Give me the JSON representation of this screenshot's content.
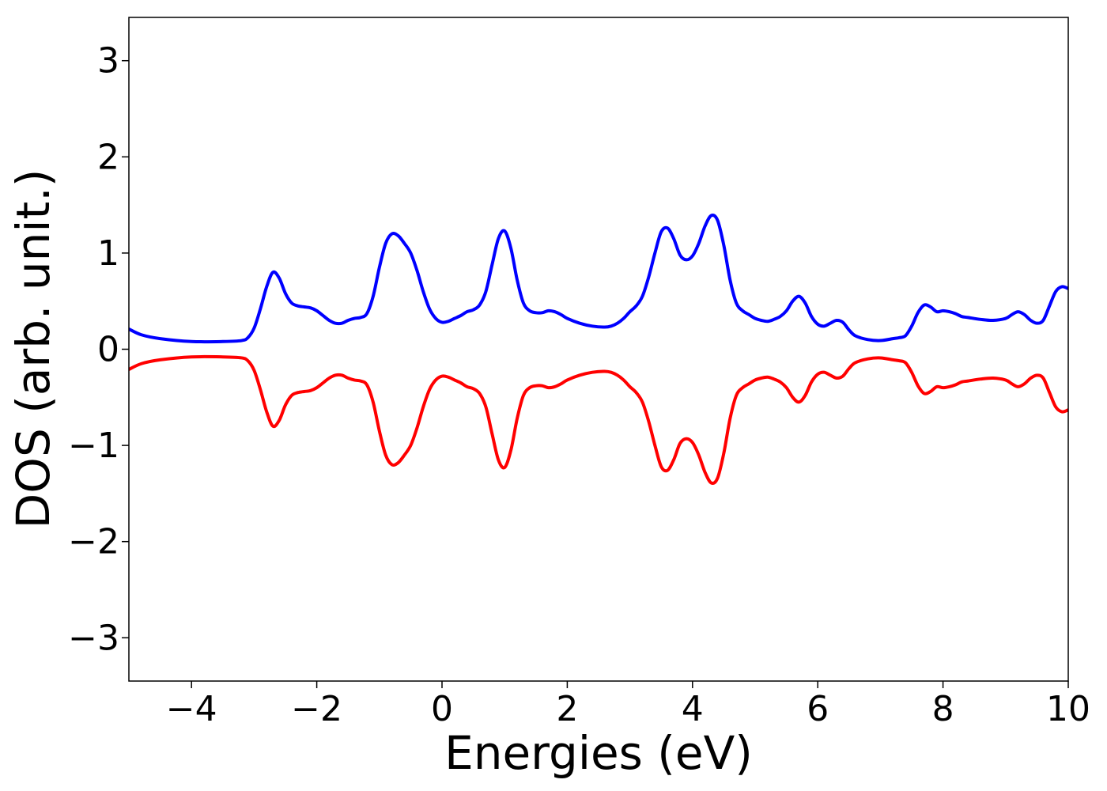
{
  "chart_data": {
    "type": "line",
    "title": "",
    "xlabel": "Energies (eV)",
    "ylabel": "DOS (arb. unit.)",
    "xlim": [
      -5,
      10
    ],
    "ylim": [
      -3.45,
      3.45
    ],
    "xticks": [
      -4,
      -2,
      0,
      2,
      4,
      6,
      8,
      10
    ],
    "yticks": [
      -3,
      -2,
      -1,
      0,
      1,
      2,
      3
    ],
    "xtick_labels": [
      "−4",
      "−2",
      "0",
      "2",
      "4",
      "6",
      "8",
      "10"
    ],
    "ytick_labels": [
      "−3",
      "−2",
      "−1",
      "0",
      "1",
      "2",
      "3"
    ],
    "grid": false,
    "legend": "none",
    "x": [
      -5.0,
      -4.8,
      -4.5,
      -4.0,
      -3.5,
      -3.2,
      -3.1,
      -3.0,
      -2.9,
      -2.8,
      -2.7,
      -2.6,
      -2.5,
      -2.4,
      -2.3,
      -2.2,
      -2.1,
      -2.0,
      -1.9,
      -1.8,
      -1.7,
      -1.6,
      -1.5,
      -1.4,
      -1.3,
      -1.2,
      -1.1,
      -1.0,
      -0.9,
      -0.8,
      -0.7,
      -0.6,
      -0.5,
      -0.4,
      -0.3,
      -0.2,
      -0.1,
      0.0,
      0.1,
      0.2,
      0.3,
      0.4,
      0.5,
      0.6,
      0.7,
      0.8,
      0.9,
      1.0,
      1.1,
      1.2,
      1.3,
      1.4,
      1.5,
      1.6,
      1.7,
      1.8,
      1.9,
      2.0,
      2.2,
      2.4,
      2.6,
      2.7,
      2.8,
      2.9,
      3.0,
      3.1,
      3.2,
      3.3,
      3.4,
      3.5,
      3.6,
      3.7,
      3.8,
      3.9,
      4.0,
      4.1,
      4.2,
      4.3,
      4.4,
      4.5,
      4.6,
      4.7,
      4.8,
      4.9,
      5.0,
      5.1,
      5.2,
      5.3,
      5.4,
      5.5,
      5.6,
      5.7,
      5.8,
      5.9,
      6.0,
      6.1,
      6.2,
      6.3,
      6.4,
      6.5,
      6.6,
      6.8,
      7.0,
      7.2,
      7.3,
      7.4,
      7.5,
      7.6,
      7.7,
      7.8,
      7.9,
      8.0,
      8.1,
      8.2,
      8.3,
      8.4,
      8.6,
      8.8,
      9.0,
      9.1,
      9.2,
      9.3,
      9.4,
      9.5,
      9.6,
      9.7,
      9.8,
      9.9,
      10.0
    ],
    "series": [
      {
        "color": "#0000ff",
        "values": [
          0.21,
          0.15,
          0.11,
          0.08,
          0.08,
          0.09,
          0.12,
          0.22,
          0.42,
          0.65,
          0.8,
          0.74,
          0.58,
          0.48,
          0.45,
          0.44,
          0.43,
          0.4,
          0.35,
          0.3,
          0.27,
          0.27,
          0.3,
          0.32,
          0.33,
          0.37,
          0.55,
          0.85,
          1.1,
          1.2,
          1.18,
          1.1,
          1.0,
          0.82,
          0.6,
          0.42,
          0.32,
          0.28,
          0.29,
          0.32,
          0.35,
          0.39,
          0.41,
          0.46,
          0.6,
          0.88,
          1.15,
          1.23,
          1.05,
          0.72,
          0.48,
          0.4,
          0.38,
          0.38,
          0.4,
          0.39,
          0.36,
          0.32,
          0.27,
          0.24,
          0.23,
          0.24,
          0.27,
          0.32,
          0.39,
          0.45,
          0.55,
          0.75,
          1.0,
          1.22,
          1.26,
          1.15,
          0.98,
          0.93,
          0.97,
          1.1,
          1.28,
          1.39,
          1.34,
          1.08,
          0.72,
          0.48,
          0.4,
          0.36,
          0.32,
          0.3,
          0.29,
          0.31,
          0.34,
          0.4,
          0.5,
          0.55,
          0.48,
          0.34,
          0.26,
          0.24,
          0.27,
          0.3,
          0.28,
          0.2,
          0.14,
          0.1,
          0.09,
          0.11,
          0.12,
          0.14,
          0.24,
          0.38,
          0.46,
          0.44,
          0.39,
          0.4,
          0.39,
          0.37,
          0.34,
          0.33,
          0.31,
          0.3,
          0.32,
          0.36,
          0.39,
          0.36,
          0.3,
          0.27,
          0.3,
          0.45,
          0.6,
          0.65,
          0.63
        ]
      },
      {
        "color": "#ff0000",
        "values": [
          -0.21,
          -0.15,
          -0.11,
          -0.08,
          -0.08,
          -0.09,
          -0.12,
          -0.22,
          -0.42,
          -0.65,
          -0.8,
          -0.74,
          -0.58,
          -0.48,
          -0.45,
          -0.44,
          -0.43,
          -0.4,
          -0.35,
          -0.3,
          -0.27,
          -0.27,
          -0.3,
          -0.32,
          -0.33,
          -0.37,
          -0.55,
          -0.85,
          -1.1,
          -1.2,
          -1.18,
          -1.1,
          -1.0,
          -0.82,
          -0.6,
          -0.42,
          -0.32,
          -0.28,
          -0.29,
          -0.32,
          -0.35,
          -0.39,
          -0.41,
          -0.46,
          -0.6,
          -0.88,
          -1.15,
          -1.23,
          -1.05,
          -0.72,
          -0.48,
          -0.4,
          -0.38,
          -0.38,
          -0.4,
          -0.39,
          -0.36,
          -0.32,
          -0.27,
          -0.24,
          -0.23,
          -0.24,
          -0.27,
          -0.32,
          -0.39,
          -0.45,
          -0.55,
          -0.75,
          -1.0,
          -1.22,
          -1.26,
          -1.15,
          -0.98,
          -0.93,
          -0.97,
          -1.1,
          -1.28,
          -1.39,
          -1.34,
          -1.08,
          -0.72,
          -0.48,
          -0.4,
          -0.36,
          -0.32,
          -0.3,
          -0.29,
          -0.31,
          -0.34,
          -0.4,
          -0.5,
          -0.55,
          -0.48,
          -0.34,
          -0.26,
          -0.24,
          -0.27,
          -0.3,
          -0.28,
          -0.2,
          -0.14,
          -0.1,
          -0.09,
          -0.11,
          -0.12,
          -0.14,
          -0.24,
          -0.38,
          -0.46,
          -0.44,
          -0.39,
          -0.4,
          -0.39,
          -0.37,
          -0.34,
          -0.33,
          -0.31,
          -0.3,
          -0.32,
          -0.36,
          -0.39,
          -0.36,
          -0.3,
          -0.27,
          -0.3,
          -0.45,
          -0.6,
          -0.65,
          -0.63
        ]
      }
    ]
  }
}
